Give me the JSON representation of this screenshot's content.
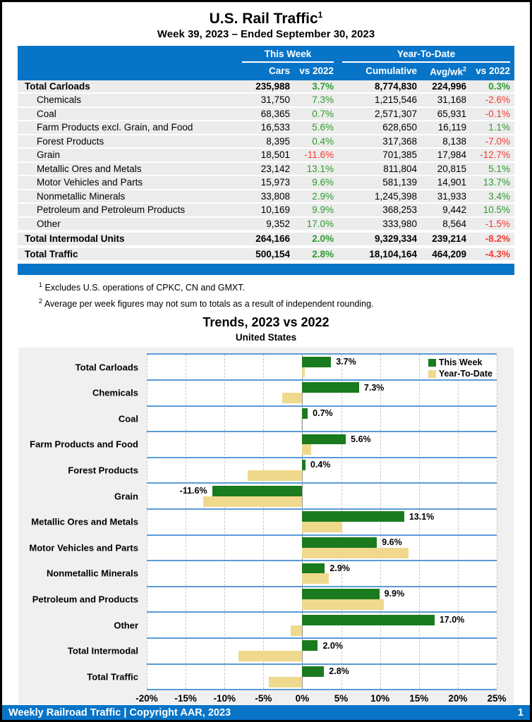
{
  "page": {
    "title": "U.S. Rail Traffic",
    "title_sup": "1",
    "subtitle": "Week 39, 2023 – Ended September 30, 2023"
  },
  "colors": {
    "header_blue": "#0774C8",
    "chart_separator_blue": "#5B9BD5",
    "bar_green": "#1A7A1E",
    "bar_yellow": "#EFD98C",
    "positive_green": "#2E9B2E",
    "negative_red": "#F43B33",
    "row_gray": "#ECECEC",
    "chart_background_gray": "#F0F0F0"
  },
  "table": {
    "group_this_week": "This Week",
    "group_ytd": "Year-To-Date",
    "col_cars": "Cars",
    "col_vs_week": "vs 2022",
    "col_cumulative": "Cumulative",
    "col_avgwk": "Avg/wk",
    "col_avgwk_sup": "2",
    "col_vs_ytd": "vs 2022",
    "rows": [
      {
        "label": "Total Carloads",
        "bold": true,
        "indent": false,
        "spacer": false,
        "cars": "235,988",
        "vs_week": "3.7%",
        "cumulative": "8,774,830",
        "avg_wk": "224,996",
        "vs_ytd": "0.3%"
      },
      {
        "label": "Chemicals",
        "bold": false,
        "indent": true,
        "spacer": false,
        "cars": "31,750",
        "vs_week": "7.3%",
        "cumulative": "1,215,546",
        "avg_wk": "31,168",
        "vs_ytd": "-2.6%"
      },
      {
        "label": "Coal",
        "bold": false,
        "indent": true,
        "spacer": false,
        "cars": "68,365",
        "vs_week": "0.7%",
        "cumulative": "2,571,307",
        "avg_wk": "65,931",
        "vs_ytd": "-0.1%"
      },
      {
        "label": "Farm Products excl. Grain, and Food",
        "bold": false,
        "indent": true,
        "spacer": false,
        "cars": "16,533",
        "vs_week": "5.6%",
        "cumulative": "628,650",
        "avg_wk": "16,119",
        "vs_ytd": "1.1%"
      },
      {
        "label": "Forest Products",
        "bold": false,
        "indent": true,
        "spacer": false,
        "cars": "8,395",
        "vs_week": "0.4%",
        "cumulative": "317,368",
        "avg_wk": "8,138",
        "vs_ytd": "-7.0%"
      },
      {
        "label": "Grain",
        "bold": false,
        "indent": true,
        "spacer": false,
        "cars": "18,501",
        "vs_week": "-11.6%",
        "cumulative": "701,385",
        "avg_wk": "17,984",
        "vs_ytd": "-12.7%"
      },
      {
        "label": "Metallic Ores and Metals",
        "bold": false,
        "indent": true,
        "spacer": false,
        "cars": "23,142",
        "vs_week": "13.1%",
        "cumulative": "811,804",
        "avg_wk": "20,815",
        "vs_ytd": "5.1%"
      },
      {
        "label": "Motor Vehicles and Parts",
        "bold": false,
        "indent": true,
        "spacer": false,
        "cars": "15,973",
        "vs_week": "9.6%",
        "cumulative": "581,139",
        "avg_wk": "14,901",
        "vs_ytd": "13.7%"
      },
      {
        "label": "Nonmetallic Minerals",
        "bold": false,
        "indent": true,
        "spacer": false,
        "cars": "33,808",
        "vs_week": "2.9%",
        "cumulative": "1,245,398",
        "avg_wk": "31,933",
        "vs_ytd": "3.4%"
      },
      {
        "label": "Petroleum and Petroleum Products",
        "bold": false,
        "indent": true,
        "spacer": false,
        "cars": "10,169",
        "vs_week": "9.9%",
        "cumulative": "368,253",
        "avg_wk": "9,442",
        "vs_ytd": "10.5%"
      },
      {
        "label": "Other",
        "bold": false,
        "indent": true,
        "spacer": false,
        "cars": "9,352",
        "vs_week": "17.0%",
        "cumulative": "333,980",
        "avg_wk": "8,564",
        "vs_ytd": "-1.5%"
      },
      {
        "label": "Total Intermodal Units",
        "bold": true,
        "indent": false,
        "spacer": true,
        "cars": "264,166",
        "vs_week": "2.0%",
        "cumulative": "9,329,334",
        "avg_wk": "239,214",
        "vs_ytd": "-8.2%"
      },
      {
        "label": "Total Traffic",
        "bold": true,
        "indent": false,
        "spacer": true,
        "cars": "500,154",
        "vs_week": "2.8%",
        "cumulative": "18,104,164",
        "avg_wk": "464,209",
        "vs_ytd": "-4.3%"
      }
    ]
  },
  "footnotes": [
    {
      "sup": "1",
      "text": "Excludes U.S. operations of CPKC, CN and GMXT."
    },
    {
      "sup": "2",
      "text": "Average per week figures may not sum to totals as a result of independent rounding."
    }
  ],
  "chart_data": {
    "type": "bar",
    "orientation": "horizontal",
    "title": "Trends, 2023 vs 2022",
    "subtitle": "United States",
    "categories": [
      "Total Carloads",
      "Chemicals",
      "Coal",
      "Farm Products and Food",
      "Forest Products",
      "Grain",
      "Metallic Ores and Metals",
      "Motor Vehicles and Parts",
      "Nonmetallic Minerals",
      "Petroleum and Products",
      "Other",
      "Total Intermodal",
      "Total Traffic"
    ],
    "series": [
      {
        "name": "This Week",
        "color": "#1A7A1E",
        "values": [
          3.7,
          7.3,
          0.7,
          5.6,
          0.4,
          -11.6,
          13.1,
          9.6,
          2.9,
          9.9,
          17.0,
          2.0,
          2.8
        ]
      },
      {
        "name": "Year-To-Date",
        "color": "#EFD98C",
        "values": [
          0.3,
          -2.6,
          -0.1,
          1.1,
          -7.0,
          -12.7,
          5.1,
          13.7,
          3.4,
          10.5,
          -1.5,
          -8.2,
          -4.3
        ]
      }
    ],
    "bar_labels": [
      "3.7%",
      "7.3%",
      "0.7%",
      "5.6%",
      "0.4%",
      "-11.6%",
      "13.1%",
      "9.6%",
      "2.9%",
      "9.9%",
      "17.0%",
      "2.0%",
      "2.8%"
    ],
    "xlim": [
      -20,
      25
    ],
    "tick_step": 5,
    "tick_labels": [
      "-20%",
      "-15%",
      "-10%",
      "-5%",
      "0%",
      "5%",
      "10%",
      "15%",
      "20%",
      "25%"
    ],
    "legend_position": "top-right",
    "grid": "vertical-dashed"
  },
  "footer": {
    "left": "Weekly Railroad Traffic | Copyright AAR, 2023",
    "page": "1"
  }
}
